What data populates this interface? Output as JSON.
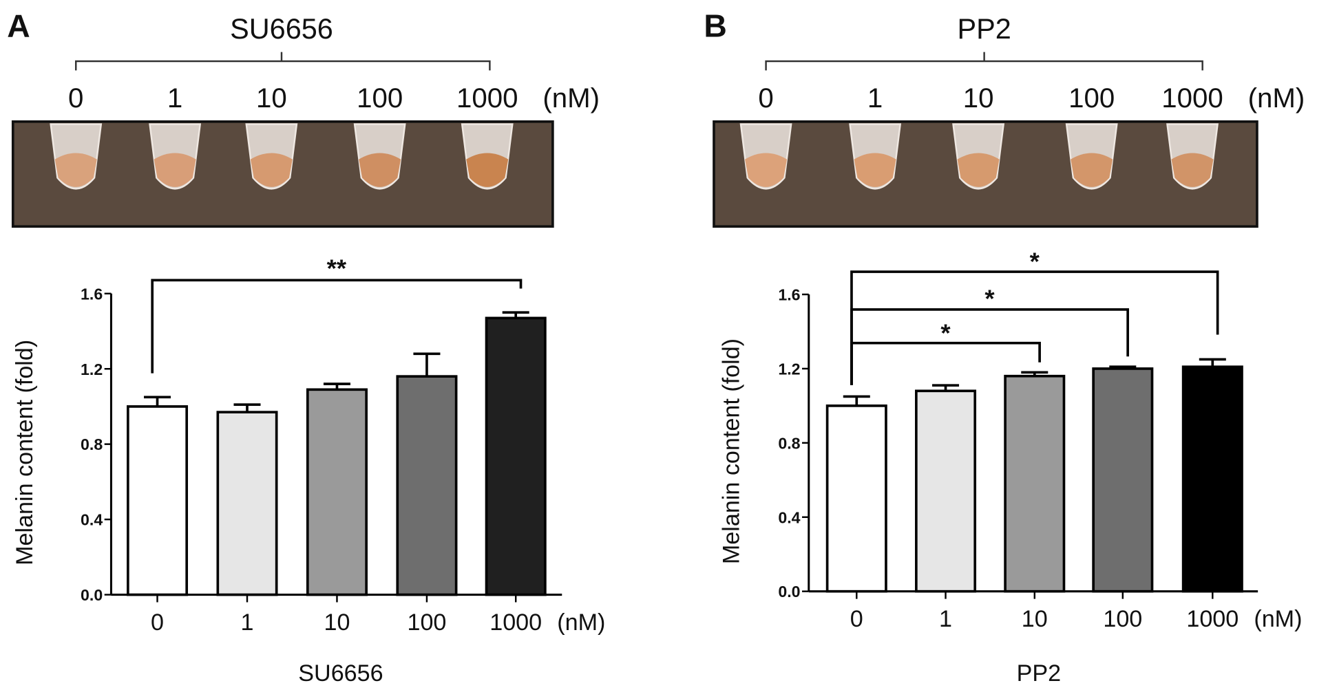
{
  "panels": [
    {
      "letter": "A",
      "drug": "SU6656",
      "concentrations": [
        "0",
        "1",
        "10",
        "100",
        "1000"
      ],
      "unit": "(nM)",
      "photo": {
        "background": "#5a4a3e",
        "pellet_colors": [
          "#d9a27c",
          "#d89e78",
          "#d69a70",
          "#cf8f62",
          "#c9844f"
        ]
      }
    },
    {
      "letter": "B",
      "drug": "PP2",
      "concentrations": [
        "0",
        "1",
        "10",
        "100",
        "1000"
      ],
      "unit": "(nM)",
      "photo": {
        "background": "#5a4a3e",
        "pellet_colors": [
          "#dca27a",
          "#d99d72",
          "#d69a6e",
          "#d3966a",
          "#d19468"
        ]
      }
    }
  ],
  "chart_data": [
    {
      "type": "bar",
      "panel": "A",
      "categories": [
        "0",
        "1",
        "10",
        "100",
        "1000"
      ],
      "unit_label": "(nM)",
      "values": [
        1.0,
        0.97,
        1.09,
        1.16,
        1.47
      ],
      "errors": [
        0.05,
        0.04,
        0.03,
        0.12,
        0.03
      ],
      "fills": [
        "#ffffff",
        "#e6e6e6",
        "#9a9a9a",
        "#6e6e6e",
        "#202020"
      ],
      "ylabel": "Melanin content (fold)",
      "xlabel": "SU6656",
      "ylim": [
        0,
        1.6
      ],
      "yticks": [
        "0.0",
        "0.4",
        "0.8",
        "1.2",
        "1.6"
      ],
      "grid": false,
      "significance": [
        {
          "from": "0",
          "to": "1000",
          "label": "**"
        }
      ]
    },
    {
      "type": "bar",
      "panel": "B",
      "categories": [
        "0",
        "1",
        "10",
        "100",
        "1000"
      ],
      "unit_label": "(nM)",
      "values": [
        1.0,
        1.08,
        1.16,
        1.2,
        1.21
      ],
      "errors": [
        0.05,
        0.03,
        0.02,
        0.01,
        0.04
      ],
      "fills": [
        "#ffffff",
        "#e6e6e6",
        "#9a9a9a",
        "#6e6e6e",
        "#000000"
      ],
      "ylabel": "Melanin content (fold)",
      "xlabel": "PP2",
      "ylim": [
        0,
        1.6
      ],
      "yticks": [
        "0.0",
        "0.4",
        "0.8",
        "1.2",
        "1.6"
      ],
      "grid": false,
      "significance": [
        {
          "from": "0",
          "to": "1000",
          "label": "*"
        },
        {
          "from": "0",
          "to": "100",
          "label": "*"
        },
        {
          "from": "0",
          "to": "10",
          "label": "*"
        }
      ]
    }
  ]
}
